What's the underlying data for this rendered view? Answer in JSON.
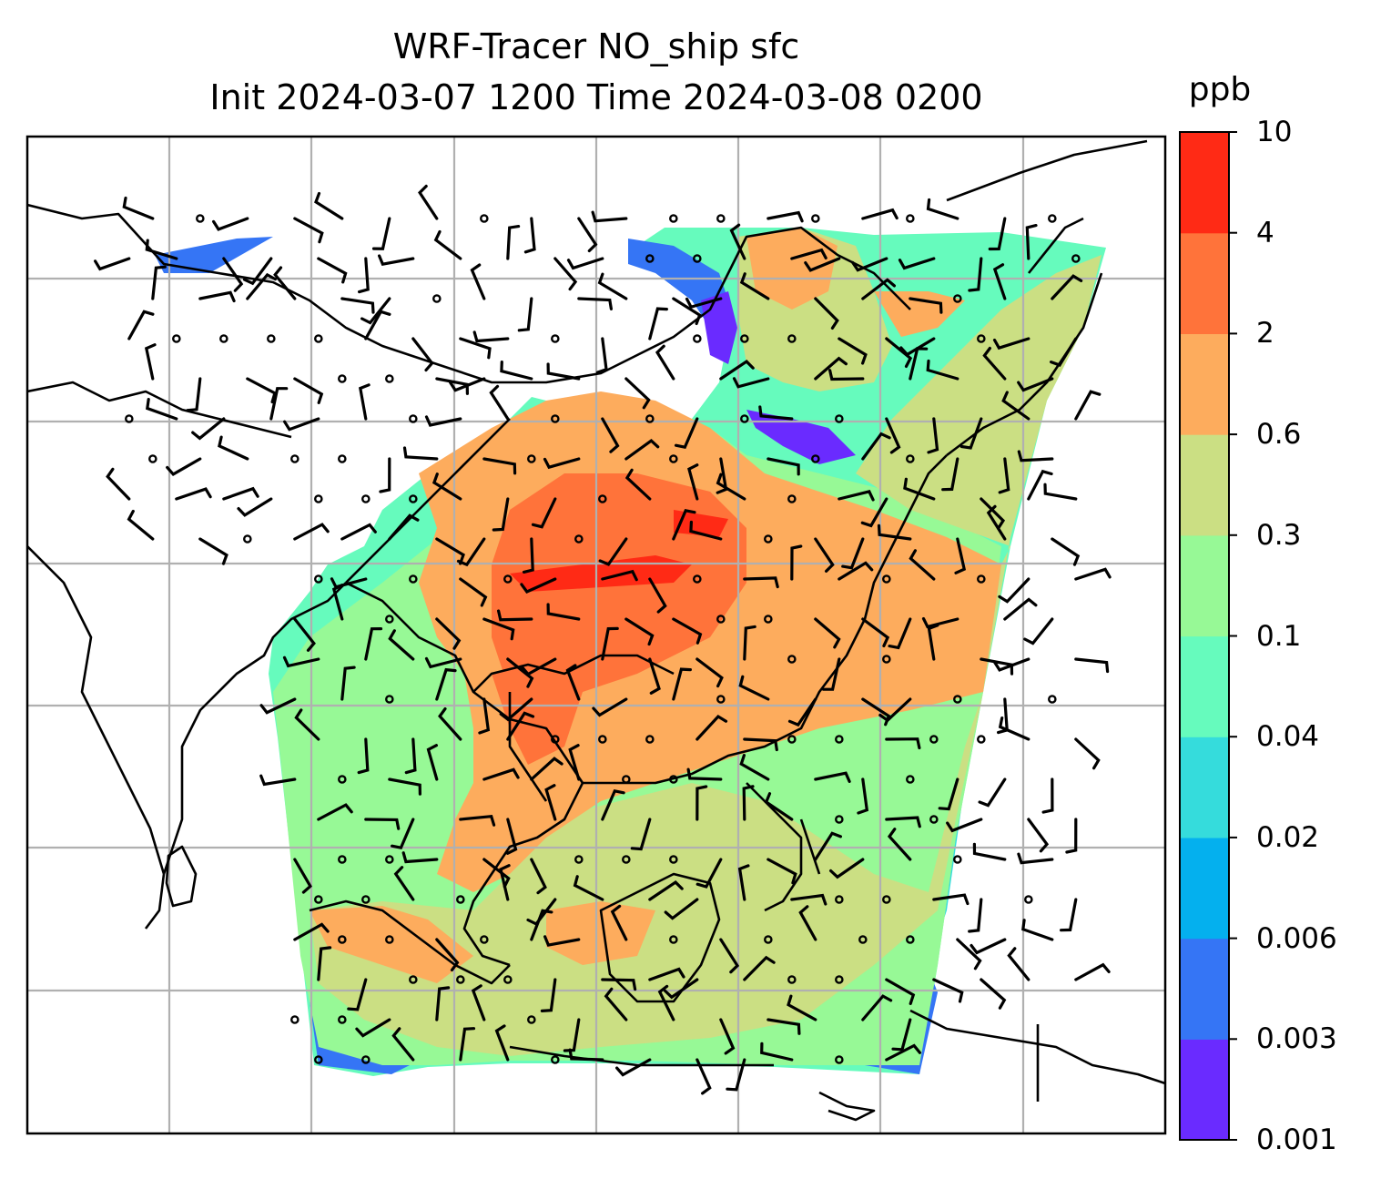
{
  "title": {
    "line1": "WRF-Tracer NO_ship sfc",
    "line2": "Init 2024-03-07 1200 Time 2024-03-08 0200"
  },
  "colorbar": {
    "units": "ppb",
    "ticks": [
      "0.001",
      "0.003",
      "0.006",
      "0.02",
      "0.04",
      "0.1",
      "0.3",
      "0.6",
      "2",
      "4",
      "10"
    ],
    "colors": [
      "#6a2bff",
      "#3575f5",
      "#04b0ee",
      "#35dcdc",
      "#66fbbd",
      "#97f996",
      "#cbdf83",
      "#fdac5d",
      "#ff733a",
      "#ff2a15"
    ]
  },
  "map": {
    "field": "NO_ship",
    "level": "sfc",
    "gridlines": true,
    "features": [
      "coastlines",
      "country-borders",
      "wind-barbs",
      "calm-circles"
    ]
  }
}
